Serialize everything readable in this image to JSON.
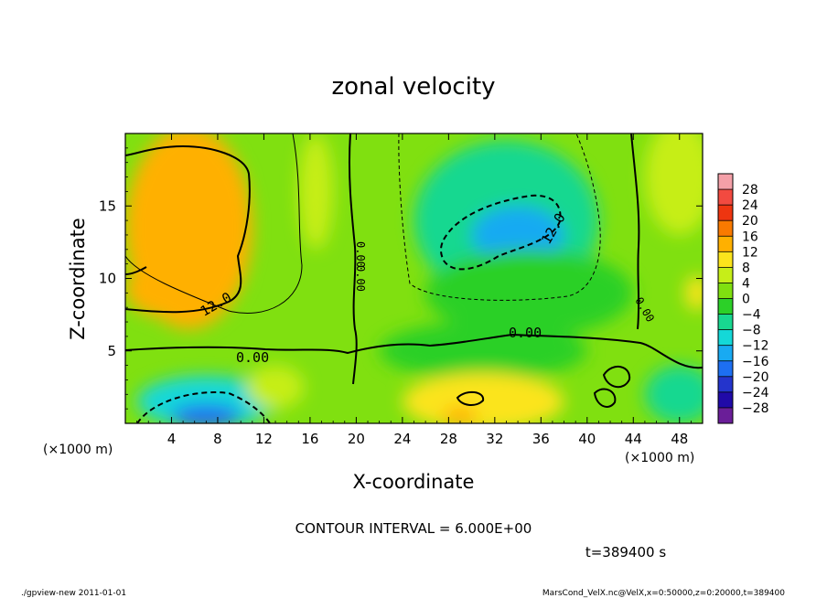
{
  "chart_data": {
    "type": "heatmap",
    "title": "zonal velocity",
    "xlabel": "X-coordinate",
    "ylabel": "Z-coordinate",
    "x_scale_note": "(×1000 m)",
    "y_scale_note": "(×1000 m)",
    "xlim": [
      0,
      50
    ],
    "ylim": [
      0,
      20
    ],
    "x_ticks": [
      4,
      8,
      12,
      16,
      20,
      24,
      28,
      32,
      36,
      40,
      44,
      48
    ],
    "y_ticks": [
      5,
      10,
      15
    ],
    "colorbar": {
      "labels": [
        "28",
        "24",
        "20",
        "16",
        "12",
        "8",
        "4",
        "0",
        "−4",
        "−8",
        "−12",
        "−16",
        "−20",
        "−24",
        "−28"
      ],
      "levels": [
        30,
        26,
        22,
        18,
        14,
        10,
        6,
        2,
        -2,
        -6,
        -10,
        -14,
        -18,
        -22,
        -26,
        -30
      ],
      "colors": [
        "#f4a0a8",
        "#f24a40",
        "#ee3510",
        "#f97a00",
        "#ffb000",
        "#fbe41c",
        "#c6ee18",
        "#80e010",
        "#2cd028",
        "#18d890",
        "#14d8d8",
        "#18aaf2",
        "#1d6ff2",
        "#2434cc",
        "#200aa8",
        "#6a1e98"
      ]
    },
    "contour_interval": "CONTOUR INTERVAL = 6.000E+00",
    "contour_labels": [
      "12.0",
      "0.00",
      "0.00",
      "0.00",
      "0.00",
      "0.00",
      "12.0"
    ],
    "blobs": [
      {
        "x": 25,
        "z": 10,
        "value": 1,
        "rx": 50,
        "rz": 30
      },
      {
        "x": 5.5,
        "z": 13.5,
        "value": 11,
        "rx": 5.5,
        "rz": 7
      },
      {
        "x": 3.5,
        "z": 9.3,
        "value": 13,
        "rx": 3.5,
        "rz": 2
      },
      {
        "x": 6,
        "z": 16.5,
        "value": 13,
        "rx": 3.5,
        "rz": 3
      },
      {
        "x": 16.5,
        "z": 16,
        "value": 3,
        "rx": 1.5,
        "rz": 4
      },
      {
        "x": 33,
        "z": 14,
        "value": -8,
        "rx": 8,
        "rz": 5.5
      },
      {
        "x": 34,
        "z": 13,
        "value": -14,
        "rx": 4,
        "rz": 2
      },
      {
        "x": 31,
        "z": 5,
        "value": -2,
        "rx": 9,
        "rz": 2
      },
      {
        "x": 35,
        "z": 9,
        "value": -3,
        "rx": 9,
        "rz": 3
      },
      {
        "x": 31,
        "z": 1.5,
        "value": 8,
        "rx": 7,
        "rz": 2
      },
      {
        "x": 29,
        "z": 0.5,
        "value": 14,
        "rx": 1.5,
        "rz": 0.6
      },
      {
        "x": 7,
        "z": 1.5,
        "value": -10,
        "rx": 6,
        "rz": 1.8
      },
      {
        "x": 7,
        "z": 0.5,
        "value": -20,
        "rx": 3,
        "rz": 0.8
      },
      {
        "x": 48,
        "z": 2,
        "value": -6,
        "rx": 3,
        "rz": 2
      },
      {
        "x": 48,
        "z": 17,
        "value": 5,
        "rx": 3,
        "rz": 4
      },
      {
        "x": 49.5,
        "z": 9,
        "value": 8,
        "rx": 1,
        "rz": 1.2
      },
      {
        "x": 13,
        "z": 2.5,
        "value": 3,
        "rx": 2.5,
        "rz": 1.5
      }
    ]
  },
  "time_label": "t=389400 s",
  "footer": {
    "left": "./gpview-new   2011-01-01",
    "right": "MarsCond_VelX.nc@VelX,x=0:50000,z=0:20000,t=389400"
  }
}
